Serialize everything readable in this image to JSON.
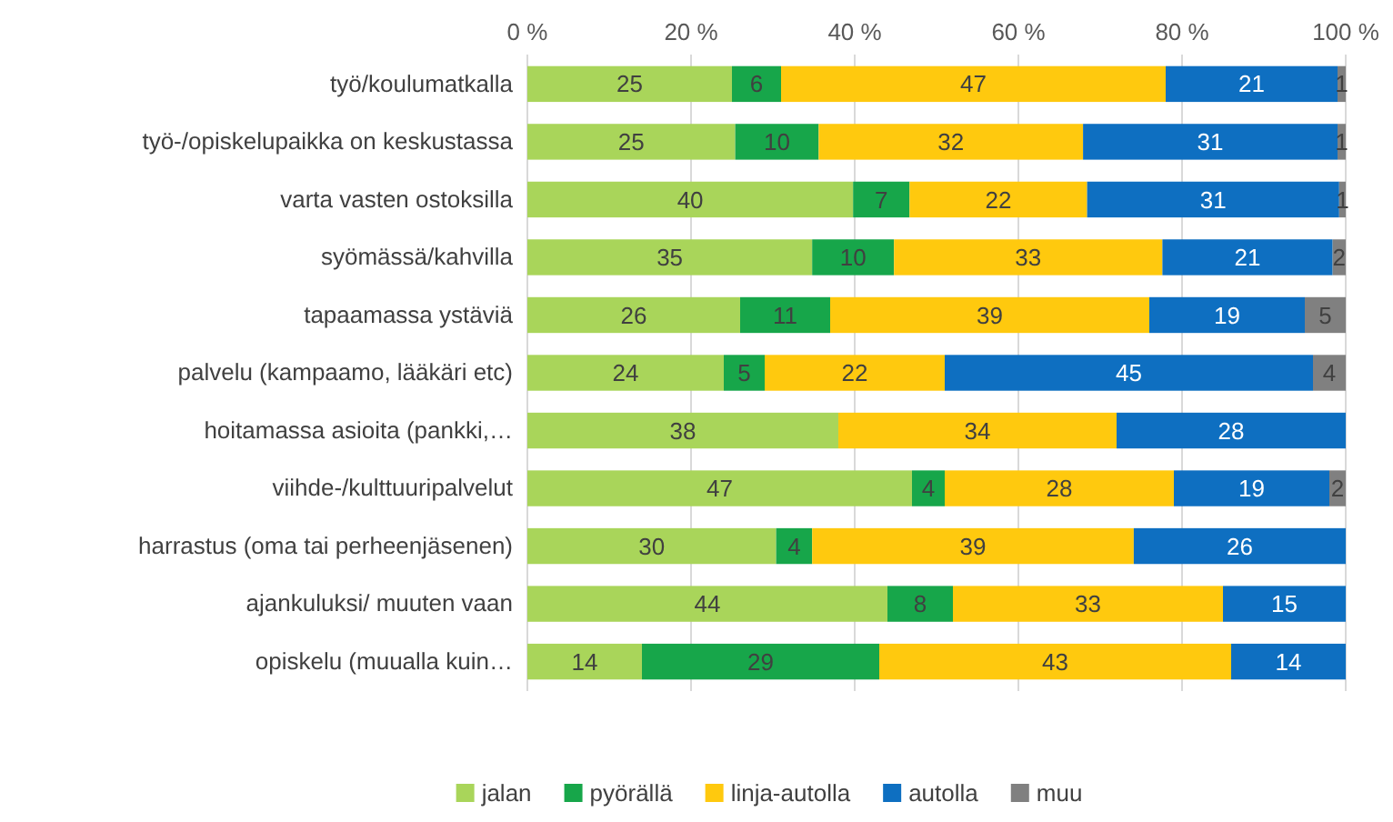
{
  "chart_data": {
    "type": "bar",
    "orientation": "horizontal",
    "stacked": true,
    "grid": "x",
    "legend": "bottom",
    "categories": [
      "työ/koulumatkalla",
      "työ-/opiskelupaikka on keskustassa",
      "varta vasten ostoksilla",
      "syömässä/kahvilla",
      "tapaamassa ystäviä",
      "palvelu (kampaamo, lääkäri etc)",
      "hoitamassa asioita (pankki,…",
      "viihde-/kulttuuripalvelut",
      "harrastus (oma tai perheenjäsenen)",
      "ajankuluksi/ muuten vaan",
      "opiskelu (muualla kuin…"
    ],
    "xlim": [
      0,
      100
    ],
    "xticks": [
      {
        "value": 0,
        "label": "0 %"
      },
      {
        "value": 20,
        "label": "20 %"
      },
      {
        "value": 40,
        "label": "40 %"
      },
      {
        "value": 60,
        "label": "60 %"
      },
      {
        "value": 80,
        "label": "80 %"
      },
      {
        "value": 100,
        "label": "100 %"
      }
    ],
    "series": [
      {
        "name": "jalan",
        "color": "#a9d55a",
        "values": [
          25,
          25.4,
          39.8,
          34.8,
          26,
          24,
          38,
          47,
          30.4,
          44,
          14
        ],
        "value_labels": [
          "25",
          "25",
          "40",
          "35",
          "26",
          "24",
          "38",
          "47",
          "30",
          "44",
          "14"
        ]
      },
      {
        "name": "pyörällä",
        "color": "#17a64a",
        "values": [
          6,
          10.2,
          6.9,
          10,
          11,
          5,
          null,
          4,
          4.4,
          8,
          29
        ],
        "value_labels": [
          "6",
          "10",
          "7",
          "10",
          "11",
          "5",
          null,
          "4",
          "4",
          "8",
          "29"
        ]
      },
      {
        "name": "linja-autolla",
        "color": "#ffc90e",
        "values": [
          47,
          32.3,
          21.7,
          32.8,
          39,
          22,
          34,
          28,
          39.3,
          33,
          43
        ],
        "value_labels": [
          "47",
          "32",
          "22",
          "33",
          "39",
          "22",
          "34",
          "28",
          "39",
          "33",
          "43"
        ]
      },
      {
        "name": "autolla",
        "color": "#0e6fc1",
        "values": [
          21,
          31.1,
          30.8,
          20.8,
          19,
          45,
          28,
          19,
          25.9,
          15,
          14
        ],
        "value_labels": [
          "21",
          "31",
          "31",
          "21",
          "19",
          "45",
          "28",
          "19",
          "26",
          "15",
          "14"
        ]
      },
      {
        "name": "muu",
        "color": "#808080",
        "values": [
          1,
          1.0,
          0.8,
          1.6,
          5,
          4,
          null,
          2,
          null,
          null,
          null
        ],
        "value_labels": [
          "1",
          "1",
          "1",
          "2",
          "5",
          "4",
          null,
          "2",
          null,
          null,
          null
        ]
      }
    ]
  }
}
